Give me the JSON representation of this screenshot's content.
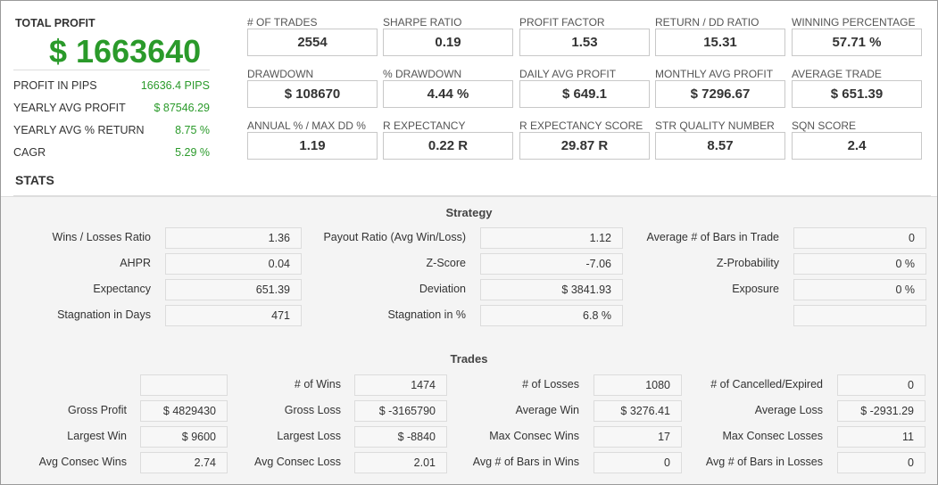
{
  "summary": {
    "title": "TOTAL PROFIT",
    "total": "$ 1663640",
    "rows": [
      [
        "PROFIT IN PIPS",
        "16636.4 PIPS"
      ],
      [
        "YEARLY AVG PROFIT",
        "$ 87546.29"
      ],
      [
        "YEARLY AVG % RETURN",
        "8.75 %"
      ],
      [
        "CAGR",
        "5.29 %"
      ]
    ]
  },
  "metrics": [
    [
      "# OF TRADES",
      "2554"
    ],
    [
      "SHARPE RATIO",
      "0.19"
    ],
    [
      "PROFIT FACTOR",
      "1.53"
    ],
    [
      "RETURN / DD RATIO",
      "15.31"
    ],
    [
      "WINNING PERCENTAGE",
      "57.71 %"
    ],
    [
      "DRAWDOWN",
      "$ 108670"
    ],
    [
      "% DRAWDOWN",
      "4.44 %"
    ],
    [
      "DAILY AVG PROFIT",
      "$ 649.1"
    ],
    [
      "MONTHLY AVG PROFIT",
      "$ 7296.67"
    ],
    [
      "AVERAGE TRADE",
      "$ 651.39"
    ],
    [
      "ANNUAL % / MAX DD %",
      "1.19"
    ],
    [
      "R EXPECTANCY",
      "0.22 R"
    ],
    [
      "R EXPECTANCY SCORE",
      "29.87 R"
    ],
    [
      "STR QUALITY NUMBER",
      "8.57"
    ],
    [
      "SQN SCORE",
      "2.4"
    ]
  ],
  "stats": {
    "title": "STATS",
    "strategy": {
      "title": "Strategy",
      "rows": [
        [
          [
            "Wins / Losses Ratio",
            "1.36"
          ],
          [
            "Payout Ratio (Avg Win/Loss)",
            "1.12"
          ],
          [
            "Average # of Bars in Trade",
            "0"
          ]
        ],
        [
          [
            "AHPR",
            "0.04"
          ],
          [
            "Z-Score",
            "-7.06"
          ],
          [
            "Z-Probability",
            "0 %"
          ]
        ],
        [
          [
            "Expectancy",
            "651.39"
          ],
          [
            "Deviation",
            "$ 3841.93"
          ],
          [
            "Exposure",
            "0 %"
          ]
        ],
        [
          [
            "Stagnation in Days",
            "471"
          ],
          [
            "Stagnation in %",
            "6.8 %"
          ],
          [
            null,
            null
          ]
        ]
      ]
    },
    "trades": {
      "title": "Trades",
      "rows": [
        [
          [
            null,
            null
          ],
          [
            "# of Wins",
            "1474"
          ],
          [
            "# of Losses",
            "1080"
          ],
          [
            "# of Cancelled/Expired",
            "0"
          ]
        ],
        [
          [
            "Gross Profit",
            "$ 4829430"
          ],
          [
            "Gross Loss",
            "$ -3165790"
          ],
          [
            "Average Win",
            "$ 3276.41"
          ],
          [
            "Average Loss",
            "$ -2931.29"
          ]
        ],
        [
          [
            "Largest Win",
            "$ 9600"
          ],
          [
            "Largest Loss",
            "$ -8840"
          ],
          [
            "Max Consec Wins",
            "17"
          ],
          [
            "Max Consec Losses",
            "11"
          ]
        ],
        [
          [
            "Avg Consec Wins",
            "2.74"
          ],
          [
            "Avg Consec Loss",
            "2.01"
          ],
          [
            "Avg # of Bars in Wins",
            "0"
          ],
          [
            "Avg # of Bars in Losses",
            "0"
          ]
        ]
      ]
    }
  }
}
